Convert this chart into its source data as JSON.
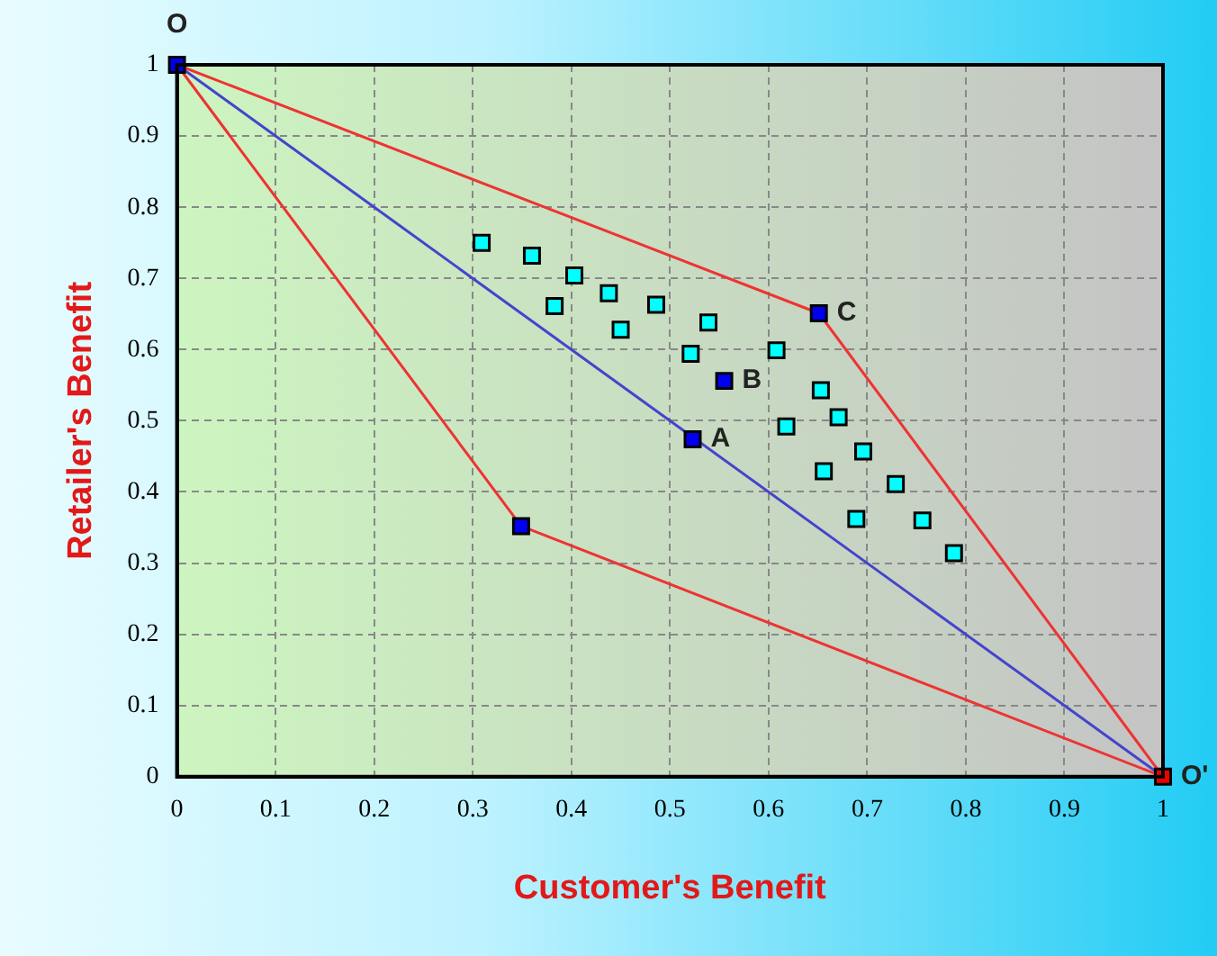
{
  "chart_data": {
    "type": "scatter",
    "xlabel": "Customer's Benefit",
    "ylabel": "Retailer's Benefit",
    "xlim": [
      0,
      1
    ],
    "ylim": [
      0,
      1
    ],
    "xticks": [
      0,
      0.1,
      0.2,
      0.3,
      0.4,
      0.5,
      0.6,
      0.7,
      0.8,
      0.9,
      1
    ],
    "yticks": [
      0,
      0.1,
      0.2,
      0.3,
      0.4,
      0.5,
      0.6,
      0.7,
      0.8,
      0.9,
      1
    ],
    "grid": true,
    "legend": false,
    "marker": "square",
    "series": [
      {
        "type": "line",
        "marker": "none",
        "color": "#ee3333",
        "x": [
          0,
          0.651,
          1
        ],
        "values": [
          1,
          0.651,
          0
        ]
      },
      {
        "type": "line",
        "marker": "none",
        "color": "#ee3333",
        "x": [
          0,
          0.349,
          1
        ],
        "values": [
          1,
          0.352,
          0
        ]
      },
      {
        "type": "line",
        "marker": "none",
        "color": "#4444cc",
        "x": [
          0,
          1
        ],
        "values": [
          1,
          0
        ]
      },
      {
        "type": "scatter",
        "color": "#00ffff",
        "x": [
          0.309,
          0.36,
          0.383,
          0.403,
          0.438,
          0.45,
          0.486,
          0.521,
          0.539,
          0.608,
          0.618,
          0.653,
          0.656,
          0.671,
          0.696,
          0.689,
          0.729,
          0.756,
          0.788
        ],
        "values": [
          0.75,
          0.732,
          0.661,
          0.704,
          0.679,
          0.628,
          0.663,
          0.594,
          0.638,
          0.599,
          0.492,
          0.543,
          0.429,
          0.505,
          0.457,
          0.362,
          0.411,
          0.36,
          0.314
        ]
      },
      {
        "type": "scatter",
        "color": "#0000ee",
        "x": [
          0,
          0.349,
          0.523,
          0.555,
          0.651
        ],
        "values": [
          1,
          0.352,
          0.474,
          0.556,
          0.651
        ]
      },
      {
        "type": "scatter",
        "color": "#ee0000",
        "x": [
          1
        ],
        "values": [
          0
        ]
      }
    ],
    "annotations": [
      {
        "text": "O",
        "x": 0,
        "y": 1
      },
      {
        "text": "O'",
        "x": 1,
        "y": 0
      },
      {
        "text": "A",
        "x": 0.523,
        "y": 0.474
      },
      {
        "text": "B",
        "x": 0.555,
        "y": 0.556
      },
      {
        "text": "C",
        "x": 0.651,
        "y": 0.651
      }
    ]
  }
}
